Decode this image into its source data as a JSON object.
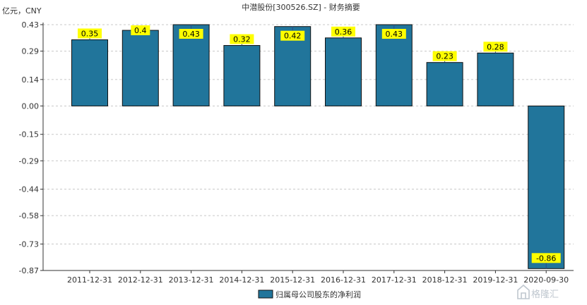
{
  "chart_data": {
    "type": "bar",
    "title": "中潜股份[300526.SZ] - 财务摘要",
    "unit_label": "亿元，CNY",
    "categories": [
      "2011-12-31",
      "2012-12-31",
      "2013-12-31",
      "2014-12-31",
      "2015-12-31",
      "2016-12-31",
      "2017-12-31",
      "2018-12-31",
      "2019-12-31",
      "2020-09-30"
    ],
    "series": [
      {
        "name": "归属母公司股东的净利润",
        "values": [
          0.35,
          0.4,
          0.43,
          0.32,
          0.42,
          0.36,
          0.43,
          0.23,
          0.28,
          -0.86
        ],
        "labels": [
          "0.35",
          "0.4",
          "0.43",
          "0.32",
          "0.42",
          "0.36",
          "0.43",
          "0.23",
          "0.28",
          "-0.86"
        ]
      }
    ],
    "y_ticks": [
      "0.43",
      "0.29",
      "0.14",
      "0.00",
      "-0.15",
      "-0.29",
      "-0.44",
      "-0.58",
      "-0.73",
      "-0.87"
    ],
    "ylim": [
      -0.87,
      0.43
    ],
    "grid": true,
    "legend_position": "bottom-center",
    "colors": {
      "bar": "#21759b",
      "bar_stroke": "#111111",
      "label_bg": "#ffff00",
      "grid": "#c8c8c8",
      "axis": "#333333"
    }
  },
  "watermark": "格隆汇"
}
